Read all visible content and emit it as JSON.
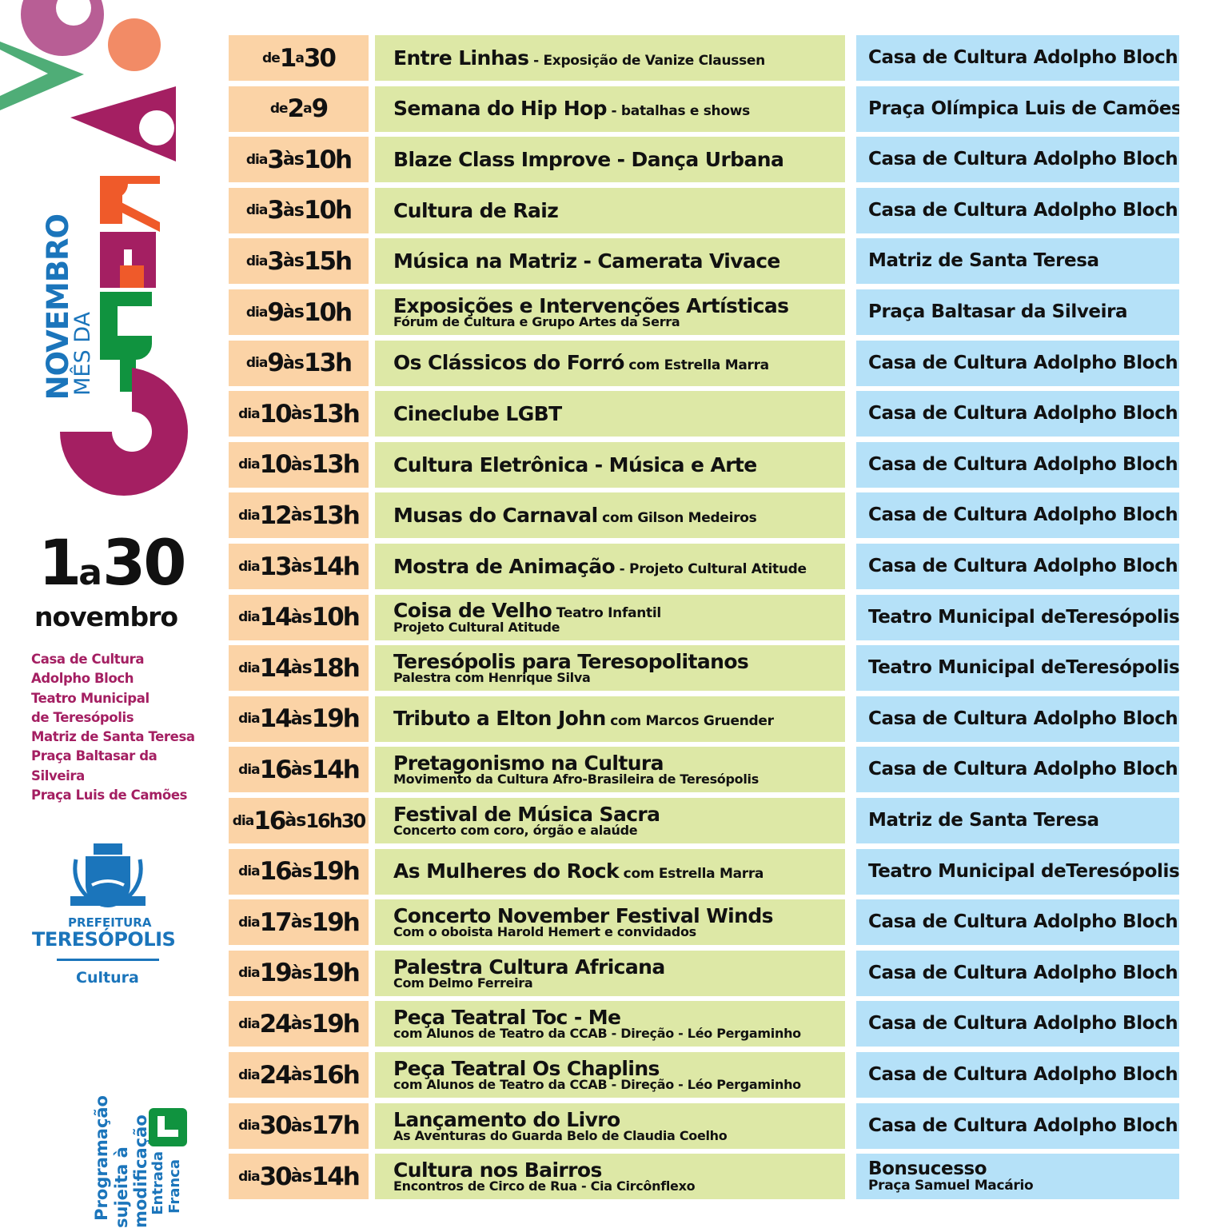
{
  "branding": {
    "title_line1": "NOVEMBRO",
    "title_line2": "MÊS DA",
    "title_word": "CULTURA",
    "date_from": "1",
    "date_a": "a",
    "date_to": "30",
    "date_month": "novembro",
    "colors": {
      "magenta": "#a41f62",
      "pink": "#b85e95",
      "green": "#4fad77",
      "dark_green": "#10933f",
      "orange": "#ef5a2a",
      "salmon": "#f28b66",
      "blue": "#1b75bb"
    }
  },
  "venues_list": [
    "Casa de Cultura",
    "Adolpho Bloch",
    "Teatro Municipal",
    "de Teresópolis",
    "Matriz de Santa Teresa",
    "Praça Baltasar da",
    "Silveira",
    "Praça Luis de Camões"
  ],
  "logo": {
    "line1": "PREFEITURA",
    "line2": "TERESÓPOLIS",
    "line3": "Cultura"
  },
  "notice": {
    "line1": "Programação",
    "line2": "sujeita à modificação"
  },
  "entry": {
    "icon": "free-entry-L-icon",
    "line1": "Entrada",
    "line2": "Franca"
  },
  "colors": {
    "date_bg": "#fbd3a6",
    "event_bg": "#dde8a6",
    "venue_bg": "#b5e1f8"
  },
  "events": [
    {
      "date": {
        "pre": "de",
        "d": "1",
        "mid": "a",
        "t": "30"
      },
      "title": "Entre Linhas",
      "inline": " - Exposição de Vanize Claussen",
      "sub": "",
      "venue": "Casa de Cultura Adolpho Bloch",
      "venue_sub": ""
    },
    {
      "date": {
        "pre": "de",
        "d": "2",
        "mid": "a",
        "t": "9"
      },
      "title": "Semana do Hip Hop",
      "inline": " - batalhas e shows",
      "sub": "",
      "venue": "Praça Olímpica Luis de Camões",
      "venue_sub": ""
    },
    {
      "date": {
        "pre": "dia",
        "d": "3",
        "mid": "às",
        "t": "10h"
      },
      "title": "Blaze Class Improve - Dança Urbana",
      "inline": "",
      "sub": "",
      "venue": "Casa de Cultura Adolpho Bloch",
      "venue_sub": ""
    },
    {
      "date": {
        "pre": "dia",
        "d": "3",
        "mid": "às",
        "t": "10h"
      },
      "title": "Cultura de Raiz",
      "inline": "",
      "sub": "",
      "venue": "Casa de Cultura Adolpho Bloch",
      "venue_sub": ""
    },
    {
      "date": {
        "pre": "dia",
        "d": "3",
        "mid": "às",
        "t": "15h"
      },
      "title": "Música na Matriz - Camerata Vivace",
      "inline": "",
      "sub": "",
      "venue": "Matriz de Santa Teresa",
      "venue_sub": ""
    },
    {
      "date": {
        "pre": "dia",
        "d": "9",
        "mid": "às",
        "t": "10h"
      },
      "title": "Exposições e Intervenções Artísticas",
      "inline": "",
      "sub": "Fórum de Cultura e Grupo Artes da Serra",
      "venue": "Praça Baltasar da Silveira",
      "venue_sub": ""
    },
    {
      "date": {
        "pre": "dia",
        "d": "9",
        "mid": "às",
        "t": "13h"
      },
      "title": "Os Clássicos do Forró",
      "inline": " com Estrella Marra",
      "sub": "",
      "venue": "Casa de Cultura Adolpho Bloch",
      "venue_sub": ""
    },
    {
      "date": {
        "pre": "dia",
        "d": "10",
        "mid": "às",
        "t": "13h"
      },
      "title": "Cineclube LGBT",
      "inline": "",
      "sub": "",
      "venue": "Casa de Cultura Adolpho Bloch",
      "venue_sub": ""
    },
    {
      "date": {
        "pre": "dia",
        "d": "10",
        "mid": "às",
        "t": "13h"
      },
      "title": "Cultura Eletrônica - Música e Arte",
      "inline": "",
      "sub": "",
      "venue": "Casa de Cultura Adolpho Bloch",
      "venue_sub": ""
    },
    {
      "date": {
        "pre": "dia",
        "d": "12",
        "mid": "às",
        "t": "13h"
      },
      "title": "Musas do Carnaval",
      "inline": " com Gilson Medeiros",
      "sub": "",
      "venue": "Casa de Cultura Adolpho Bloch",
      "venue_sub": ""
    },
    {
      "date": {
        "pre": "dia",
        "d": "13",
        "mid": "às",
        "t": "14h"
      },
      "title": "Mostra de Animação",
      "inline": " - Projeto Cultural Atitude",
      "sub": "",
      "venue": "Casa de Cultura Adolpho Bloch",
      "venue_sub": ""
    },
    {
      "date": {
        "pre": "dia",
        "d": "14",
        "mid": "às",
        "t": "10h"
      },
      "title": "Coisa de Velho",
      "inline": " Teatro Infantil",
      "sub": "Projeto Cultural Atitude",
      "venue": "Teatro Municipal deTeresópolis",
      "venue_sub": ""
    },
    {
      "date": {
        "pre": "dia",
        "d": "14",
        "mid": "às",
        "t": "18h"
      },
      "title": "Teresópolis para Teresopolitanos",
      "inline": "",
      "sub": "Palestra com Henrique Silva",
      "venue": "Teatro Municipal deTeresópolis",
      "venue_sub": ""
    },
    {
      "date": {
        "pre": "dia",
        "d": "14",
        "mid": "às",
        "t": "19h"
      },
      "title": "Tributo a Elton John",
      "inline": " com Marcos Gruender",
      "sub": "",
      "venue": "Casa de Cultura Adolpho Bloch",
      "venue_sub": ""
    },
    {
      "date": {
        "pre": "dia",
        "d": "16",
        "mid": "às",
        "t": "14h"
      },
      "title": "Pretagonismo na Cultura",
      "inline": "",
      "sub": "Movimento da Cultura Afro-Brasileira de Teresópolis",
      "venue": "Casa de Cultura Adolpho Bloch",
      "venue_sub": ""
    },
    {
      "date": {
        "pre": "dia",
        "d": "16",
        "mid": "às",
        "t": "16h30"
      },
      "title": "Festival de Música Sacra",
      "inline": "",
      "sub": "Concerto com coro, órgão e alaúde",
      "venue": "Matriz de Santa Teresa",
      "venue_sub": ""
    },
    {
      "date": {
        "pre": "dia",
        "d": "16",
        "mid": "às",
        "t": "19h"
      },
      "title": "As Mulheres do Rock",
      "inline": " com Estrella Marra",
      "sub": "",
      "venue": "Teatro Municipal deTeresópolis",
      "venue_sub": ""
    },
    {
      "date": {
        "pre": "dia",
        "d": "17",
        "mid": "às",
        "t": "19h"
      },
      "title": "Concerto November Festival Winds",
      "inline": "",
      "sub": "Com o oboista Harold Hemert e convidados",
      "venue": "Casa de Cultura Adolpho Bloch",
      "venue_sub": ""
    },
    {
      "date": {
        "pre": "dia",
        "d": "19",
        "mid": "às",
        "t": "19h"
      },
      "title": "Palestra Cultura Africana",
      "inline": "",
      "sub": "Com Delmo Ferreira",
      "venue": "Casa de Cultura Adolpho Bloch",
      "venue_sub": ""
    },
    {
      "date": {
        "pre": "dia",
        "d": "24",
        "mid": "às",
        "t": "19h"
      },
      "title": "Peça Teatral Toc - Me",
      "inline": "",
      "sub": "com Alunos de Teatro da CCAB - Direção - Léo Pergaminho",
      "venue": "Casa de Cultura Adolpho Bloch",
      "venue_sub": ""
    },
    {
      "date": {
        "pre": "dia",
        "d": "24",
        "mid": "às",
        "t": "16h"
      },
      "title": "Peça Teatral Os Chaplins",
      "inline": "",
      "sub": "com Alunos de Teatro da CCAB - Direção - Léo Pergaminho",
      "venue": "Casa de Cultura Adolpho Bloch",
      "venue_sub": ""
    },
    {
      "date": {
        "pre": "dia",
        "d": "30",
        "mid": "às",
        "t": "17h"
      },
      "title": "Lançamento do Livro",
      "inline": "",
      "sub": "As Aventuras do Guarda Belo de Claudia Coelho",
      "venue": "Casa de Cultura Adolpho Bloch",
      "venue_sub": ""
    },
    {
      "date": {
        "pre": "dia",
        "d": "30",
        "mid": "às",
        "t": "14h"
      },
      "title": "Cultura nos Bairros",
      "inline": "",
      "sub": "Encontros de Circo de Rua - Cia Circônflexo",
      "venue": "Bonsucesso",
      "venue_sub": "Praça Samuel Macário"
    }
  ]
}
